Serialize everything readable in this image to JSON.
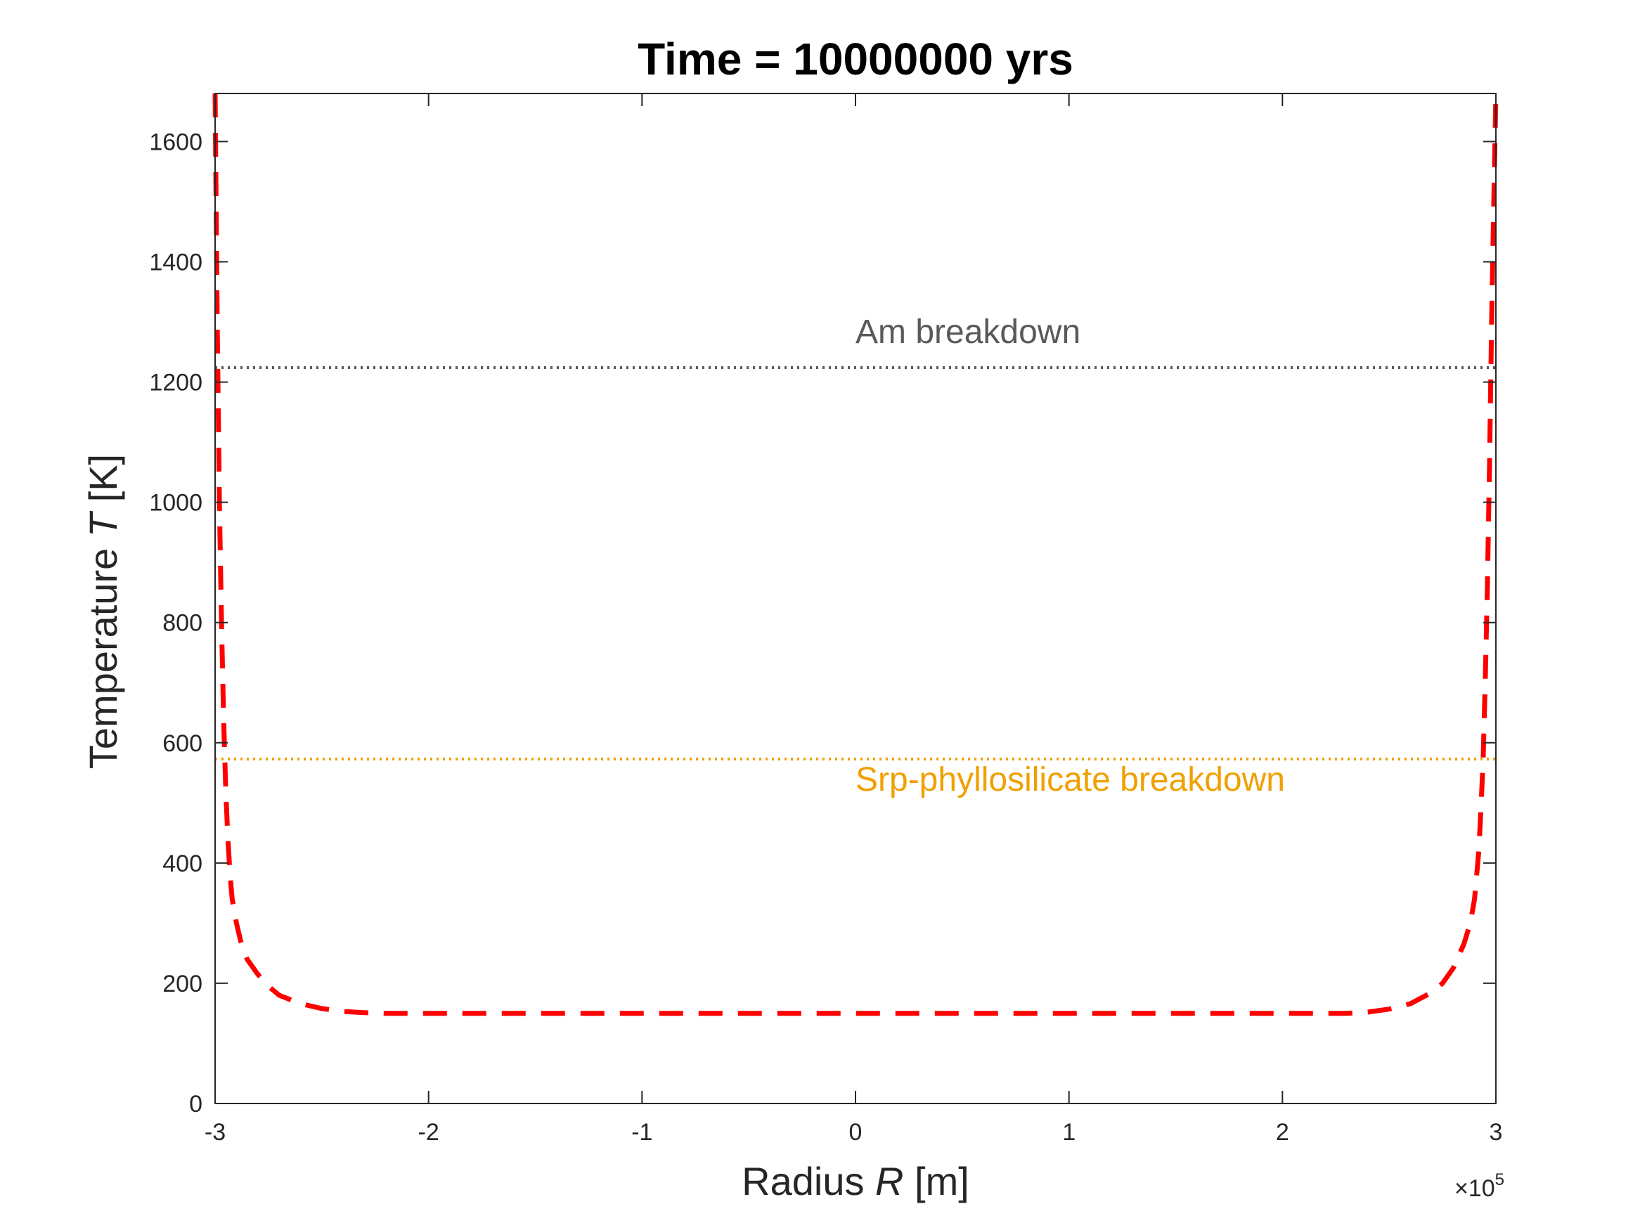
{
  "chart_data": {
    "type": "line",
    "title": "Time = 10000000 yrs",
    "xlabel_parts": [
      "Radius ",
      "R",
      "  [m]"
    ],
    "ylabel_parts": [
      "Temperature ",
      "T",
      " [K]"
    ],
    "x_exponent_label": "×10",
    "x_exponent_power": "5",
    "xlim": [
      -3,
      3
    ],
    "ylim": [
      0,
      1680
    ],
    "x_ticks": [
      -3,
      -2,
      -1,
      0,
      1,
      2,
      3
    ],
    "x_tick_labels": [
      "-3",
      "-2",
      "-1",
      "0",
      "1",
      "2",
      "3"
    ],
    "y_ticks": [
      0,
      200,
      400,
      600,
      800,
      1000,
      1200,
      1400,
      1600
    ],
    "y_tick_labels": [
      "0",
      "200",
      "400",
      "600",
      "800",
      "1000",
      "1200",
      "1400",
      "1600"
    ],
    "grid": false,
    "series": [
      {
        "style": "dashed",
        "color": "#ff0000",
        "x": [
          -3.0,
          -2.99,
          -2.98,
          -2.97,
          -2.96,
          -2.95,
          -2.94,
          -2.93,
          -2.92,
          -2.9,
          -2.88,
          -2.85,
          -2.8,
          -2.75,
          -2.7,
          -2.6,
          -2.5,
          -2.4,
          -2.3,
          -2.2,
          -2.0,
          -1.5,
          -1.0,
          -0.5,
          0.0,
          0.5,
          1.0,
          1.5,
          2.0,
          2.2,
          2.3,
          2.4,
          2.5,
          2.6,
          2.7,
          2.75,
          2.8,
          2.85,
          2.88,
          2.9,
          2.92,
          2.93,
          2.94,
          2.95,
          2.96,
          2.97,
          2.98,
          2.99,
          3.0
        ],
        "y": [
          1680,
          1300,
          1000,
          800,
          640,
          520,
          440,
          380,
          340,
          300,
          270,
          240,
          215,
          195,
          180,
          166,
          158,
          153,
          151,
          150,
          150,
          150,
          150,
          150,
          150,
          150,
          150,
          150,
          150,
          150,
          150,
          152,
          157,
          166,
          185,
          200,
          225,
          265,
          300,
          340,
          420,
          490,
          570,
          700,
          860,
          1060,
          1300,
          1500,
          1680
        ]
      }
    ],
    "reference_lines": [
      {
        "label": "Am breakdown",
        "y": 1224,
        "color": "#595959",
        "style": "dotted",
        "label_x": 0.0,
        "label_y": 1265
      },
      {
        "label": "Srp-phyllosilicate breakdown",
        "y": 573,
        "color": "#f0a000",
        "style": "dotted",
        "label_x": 0.0,
        "label_y": 520
      }
    ]
  }
}
